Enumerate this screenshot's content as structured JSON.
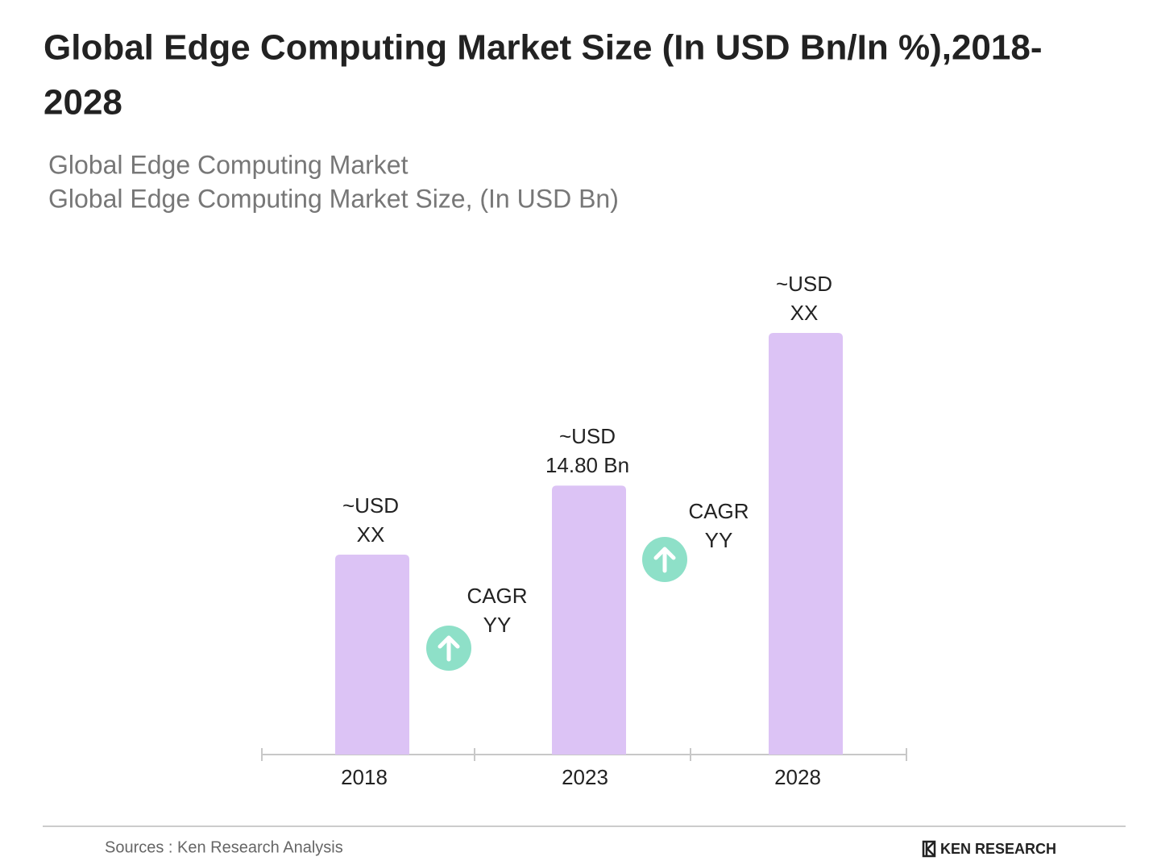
{
  "chart_data": {
    "type": "bar",
    "title": [
      "Global Edge Computing Market Size (In USD Bn/In %),2018-",
      "2028"
    ],
    "subtitle": [
      "Global Edge Computing Market",
      "Global Edge Computing Market Size, (In USD Bn)"
    ],
    "categories": [
      "2018",
      "2023",
      "2028"
    ],
    "values": [
      11.0,
      14.8,
      23.2
    ],
    "value_labels": [
      [
        "~USD",
        "XX"
      ],
      [
        "~USD",
        "14.80 Bn"
      ],
      [
        "~USD",
        "XX"
      ]
    ],
    "color": "#dcc3f5",
    "annotations": [
      [
        "CAGR",
        "YY"
      ],
      [
        "CAGR",
        "YY"
      ]
    ],
    "source": "Sources : Ken Research Analysis",
    "logo": "KEN RESEARCH"
  }
}
